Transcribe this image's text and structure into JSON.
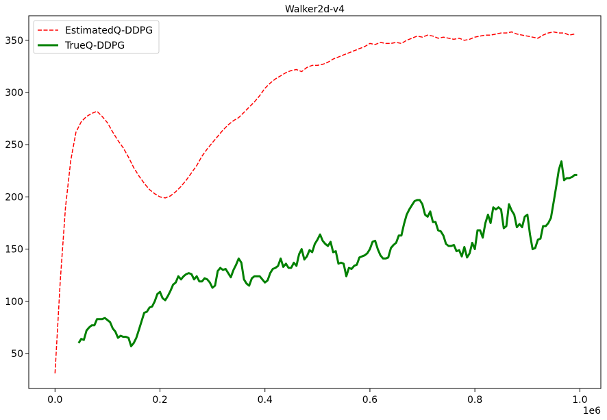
{
  "chart_data": {
    "type": "line",
    "title": "Walker2d-v4",
    "xlabel": "",
    "ylabel": "",
    "x_offset_label": "1e6",
    "xlim": [
      -0.05,
      1.04
    ],
    "ylim": [
      16.5,
      373.5
    ],
    "xticks": [
      0.0,
      0.2,
      0.4,
      0.6,
      0.8,
      1.0
    ],
    "xtick_labels": [
      "0.0",
      "0.2",
      "0.4",
      "0.6",
      "0.8",
      "1.0"
    ],
    "yticks": [
      50,
      100,
      150,
      200,
      250,
      300,
      350
    ],
    "ytick_labels": [
      "50",
      "100",
      "150",
      "200",
      "250",
      "300",
      "350"
    ],
    "grid": false,
    "legend_position": "top-left",
    "series": [
      {
        "name": "EstimatedQ-DDPG",
        "color": "#ff0000",
        "style": "dashed",
        "x": [
          0.0,
          0.01,
          0.02,
          0.03,
          0.04,
          0.05,
          0.06,
          0.07,
          0.08,
          0.09,
          0.1,
          0.11,
          0.12,
          0.13,
          0.14,
          0.15,
          0.16,
          0.17,
          0.18,
          0.19,
          0.2,
          0.21,
          0.22,
          0.23,
          0.24,
          0.25,
          0.26,
          0.27,
          0.28,
          0.29,
          0.3,
          0.31,
          0.32,
          0.33,
          0.34,
          0.35,
          0.36,
          0.37,
          0.38,
          0.39,
          0.4,
          0.41,
          0.42,
          0.43,
          0.44,
          0.45,
          0.46,
          0.47,
          0.48,
          0.49,
          0.5,
          0.51,
          0.52,
          0.53,
          0.54,
          0.55,
          0.56,
          0.57,
          0.58,
          0.59,
          0.6,
          0.61,
          0.62,
          0.63,
          0.64,
          0.65,
          0.66,
          0.67,
          0.68,
          0.69,
          0.7,
          0.71,
          0.72,
          0.73,
          0.74,
          0.75,
          0.76,
          0.77,
          0.78,
          0.79,
          0.8,
          0.81,
          0.82,
          0.83,
          0.84,
          0.85,
          0.86,
          0.87,
          0.88,
          0.89,
          0.9,
          0.91,
          0.92,
          0.93,
          0.94,
          0.95,
          0.96,
          0.97,
          0.98,
          0.99
        ],
        "values": [
          31,
          120,
          190,
          235,
          262,
          272,
          277,
          280,
          282,
          277,
          271,
          262,
          254,
          247,
          238,
          228,
          220,
          213,
          207,
          203,
          200,
          199,
          201,
          205,
          210,
          216,
          223,
          230,
          239,
          246,
          252,
          258,
          264,
          269,
          273,
          276,
          281,
          286,
          291,
          297,
          304,
          309,
          313,
          316,
          319,
          321,
          322,
          320,
          324,
          326,
          326,
          327,
          329,
          332,
          334,
          336,
          338,
          340,
          342,
          344,
          347,
          346,
          348,
          347,
          347,
          348,
          347,
          350,
          352,
          354,
          353,
          355,
          354,
          352,
          353,
          352,
          351,
          352,
          350,
          351,
          353,
          354,
          355,
          355,
          356,
          357,
          357,
          358,
          356,
          355,
          354,
          353,
          352,
          355,
          357,
          358,
          357,
          357,
          355,
          356
        ]
      },
      {
        "name": "TrueQ-DDPG",
        "color": "#008000",
        "style": "solid",
        "x": [
          0.045,
          0.05,
          0.055,
          0.06,
          0.065,
          0.07,
          0.075,
          0.08,
          0.085,
          0.09,
          0.095,
          0.1,
          0.105,
          0.11,
          0.115,
          0.12,
          0.125,
          0.13,
          0.135,
          0.14,
          0.145,
          0.15,
          0.155,
          0.16,
          0.165,
          0.17,
          0.175,
          0.18,
          0.185,
          0.19,
          0.195,
          0.2,
          0.205,
          0.21,
          0.215,
          0.22,
          0.225,
          0.23,
          0.235,
          0.24,
          0.245,
          0.25,
          0.255,
          0.26,
          0.265,
          0.27,
          0.275,
          0.28,
          0.285,
          0.29,
          0.295,
          0.3,
          0.305,
          0.31,
          0.315,
          0.32,
          0.325,
          0.33,
          0.335,
          0.34,
          0.345,
          0.35,
          0.355,
          0.36,
          0.365,
          0.37,
          0.375,
          0.38,
          0.385,
          0.39,
          0.395,
          0.4,
          0.405,
          0.41,
          0.415,
          0.42,
          0.425,
          0.43,
          0.435,
          0.44,
          0.445,
          0.45,
          0.455,
          0.46,
          0.465,
          0.47,
          0.475,
          0.48,
          0.485,
          0.49,
          0.495,
          0.5,
          0.505,
          0.51,
          0.515,
          0.52,
          0.525,
          0.53,
          0.535,
          0.54,
          0.545,
          0.55,
          0.555,
          0.56,
          0.565,
          0.57,
          0.575,
          0.58,
          0.585,
          0.59,
          0.595,
          0.6,
          0.605,
          0.61,
          0.615,
          0.62,
          0.625,
          0.63,
          0.635,
          0.64,
          0.645,
          0.65,
          0.655,
          0.66,
          0.665,
          0.67,
          0.675,
          0.68,
          0.685,
          0.69,
          0.695,
          0.7,
          0.705,
          0.71,
          0.715,
          0.72,
          0.725,
          0.73,
          0.735,
          0.74,
          0.745,
          0.75,
          0.755,
          0.76,
          0.765,
          0.77,
          0.775,
          0.78,
          0.785,
          0.79,
          0.795,
          0.8,
          0.805,
          0.81,
          0.815,
          0.82,
          0.825,
          0.83,
          0.835,
          0.84,
          0.845,
          0.85,
          0.855,
          0.86,
          0.865,
          0.87,
          0.875,
          0.88,
          0.885,
          0.89,
          0.895,
          0.9,
          0.905,
          0.91,
          0.915,
          0.92,
          0.925,
          0.93,
          0.935,
          0.94,
          0.945,
          0.95,
          0.955,
          0.96,
          0.965,
          0.97,
          0.975,
          0.98,
          0.985,
          0.99,
          0.995
        ],
        "values": [
          60,
          64,
          63,
          72,
          75,
          77,
          77,
          83,
          83,
          83,
          84,
          82,
          80,
          74,
          71,
          65,
          67,
          66,
          66,
          65,
          57,
          60,
          65,
          73,
          81,
          89,
          90,
          94,
          95,
          100,
          107,
          109,
          103,
          101,
          105,
          110,
          116,
          118,
          124,
          121,
          124,
          126,
          127,
          126,
          121,
          124,
          119,
          119,
          122,
          121,
          118,
          113,
          115,
          129,
          132,
          130,
          131,
          127,
          123,
          130,
          135,
          141,
          137,
          121,
          117,
          115,
          122,
          124,
          124,
          124,
          121,
          118,
          120,
          127,
          131,
          132,
          134,
          141,
          133,
          136,
          132,
          132,
          137,
          134,
          145,
          150,
          140,
          143,
          149,
          147,
          155,
          159,
          164,
          158,
          155,
          153,
          157,
          147,
          148,
          136,
          137,
          136,
          124,
          132,
          131,
          134,
          135,
          142,
          143,
          144,
          146,
          150,
          157,
          158,
          150,
          144,
          141,
          141,
          142,
          151,
          154,
          156,
          163,
          163,
          174,
          183,
          188,
          192,
          196,
          197,
          197,
          193,
          183,
          181,
          186,
          176,
          176,
          168,
          167,
          163,
          155,
          153,
          153,
          154,
          148,
          149,
          143,
          152,
          142,
          146,
          156,
          150,
          168,
          168,
          161,
          175,
          183,
          175,
          190,
          188,
          190,
          188,
          170,
          172,
          193,
          187,
          183,
          171,
          174,
          171,
          181,
          183,
          164,
          150,
          151,
          159,
          160,
          172,
          172,
          175,
          180,
          195,
          210,
          226,
          234,
          216,
          218,
          218,
          219,
          221,
          221
        ]
      }
    ]
  }
}
